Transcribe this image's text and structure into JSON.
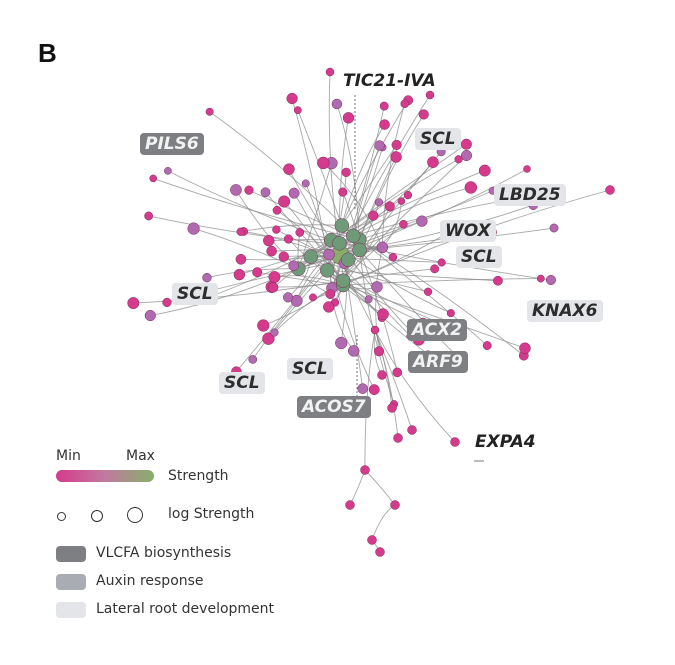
{
  "panel_letter": "B",
  "labels": {
    "tic21": "TIC21-IVA",
    "pils6": "PILS6",
    "scl_top": "SCL",
    "lbd25": "LBD25",
    "wox": "WOX",
    "scl_right": "SCL",
    "knax6": "KNAX6",
    "acx2": "ACX2",
    "arf9": "ARF9",
    "scl_left": "SCL",
    "scl_bottom_left": "SCL",
    "scl_bottom_mid": "SCL",
    "acos7": "ACOS7",
    "expa4": "EXPA4"
  },
  "legend": {
    "min_label": "Min",
    "max_label": "Max",
    "strength_label": "Strength",
    "size_label": "log Strength",
    "categories": [
      {
        "name": "VLCFA biosynthesis",
        "color": "#7d7f82"
      },
      {
        "name": "Auxin response",
        "color": "#a9adb3"
      },
      {
        "name": "Lateral root development",
        "color": "#e3e5e8"
      }
    ]
  },
  "colors": {
    "node_min": "#d63a8c",
    "node_mid": "#b06ab0",
    "node_max": "#86b06a",
    "edge": "#8a8a8a"
  }
}
